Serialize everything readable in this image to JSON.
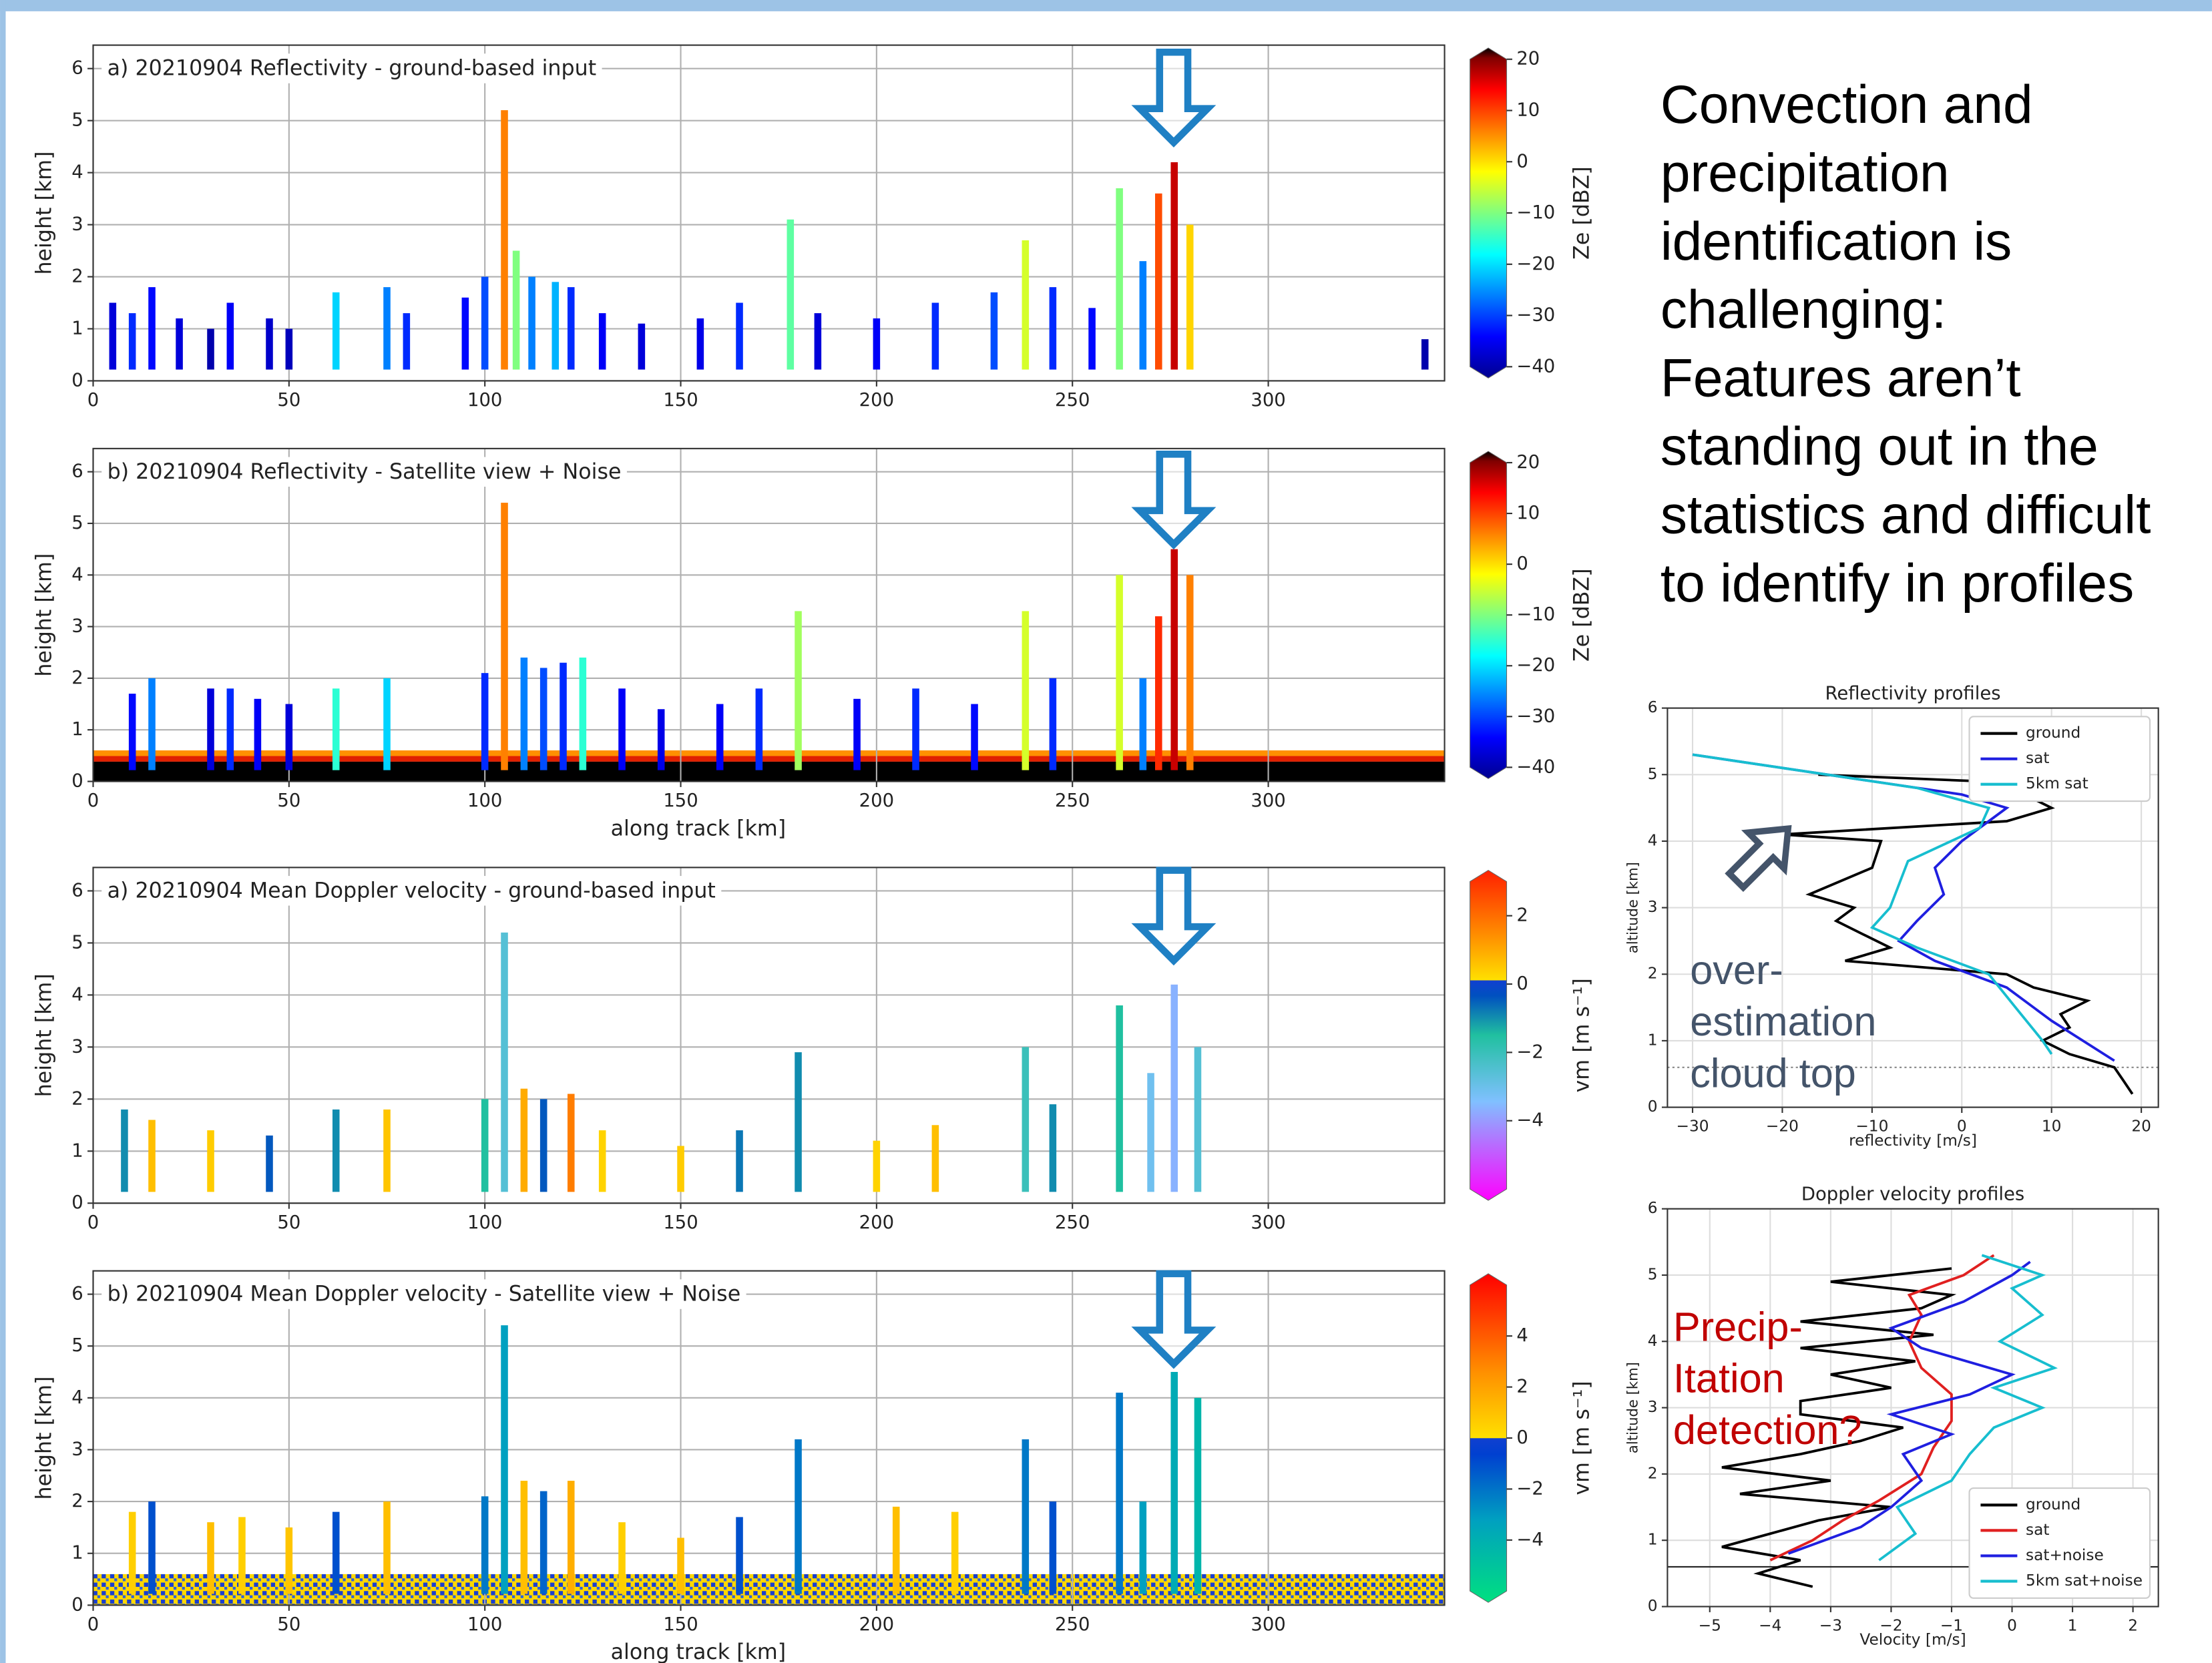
{
  "slide_text": [
    "Convection and",
    "precipitation",
    "identification is",
    "challenging:",
    "Features aren’t",
    "standing out in the",
    "statistics and difficult",
    "to identify in profiles"
  ],
  "chart_data": [
    {
      "type": "heatmap",
      "title": "a) 20210904 Reflectivity - ground-based input",
      "ylabel": "height [km]",
      "colormap": "jet",
      "xlim": [
        0,
        345
      ],
      "ylim": [
        0,
        6.45
      ],
      "xticks": [
        0,
        50,
        100,
        150,
        200,
        250,
        300
      ],
      "yticks": [
        0,
        1,
        2,
        3,
        4,
        5,
        6
      ],
      "grid": true,
      "x": [
        5,
        10,
        15,
        22,
        30,
        35,
        45,
        50,
        62,
        75,
        80,
        95,
        100,
        105,
        108,
        112,
        118,
        122,
        130,
        140,
        155,
        165,
        178,
        185,
        200,
        215,
        230,
        238,
        245,
        255,
        262,
        268,
        272,
        276,
        280,
        340
      ],
      "tops": [
        1.5,
        1.3,
        1.8,
        1.2,
        1.0,
        1.5,
        1.2,
        1.0,
        1.7,
        1.8,
        1.3,
        1.6,
        2.0,
        5.2,
        2.5,
        2.0,
        1.9,
        1.8,
        1.3,
        1.1,
        1.2,
        1.5,
        3.1,
        1.3,
        1.2,
        1.5,
        1.7,
        2.7,
        1.8,
        1.4,
        3.7,
        2.3,
        3.6,
        4.2,
        3.0,
        0.8
      ],
      "values": [
        -35,
        -30,
        -32,
        -35,
        -38,
        -33,
        -36,
        -37,
        -20,
        -25,
        -30,
        -32,
        -28,
        5,
        -10,
        -25,
        -22,
        -30,
        -33,
        -35,
        -34,
        -30,
        -12,
        -35,
        -33,
        -30,
        -28,
        -5,
        -30,
        -32,
        -10,
        -25,
        8,
        15,
        0,
        -38
      ],
      "clim": [
        -40,
        20
      ],
      "colorbar_label": "Ze [dBZ]",
      "cticks": [
        {
          "value": -40,
          "label": "−40"
        },
        {
          "value": -30,
          "label": "−30"
        },
        {
          "value": -20,
          "label": "−20"
        },
        {
          "value": -10,
          "label": "−10"
        },
        0,
        10,
        20
      ]
    },
    {
      "type": "heatmap",
      "title": "b) 20210904 Reflectivity - Satellite view + Noise",
      "ylabel": "height [km]",
      "xlabel": "along track [km]",
      "colormap": "jet",
      "xlim": [
        0,
        345
      ],
      "ylim": [
        0,
        6.45
      ],
      "xticks": [
        0,
        50,
        100,
        150,
        200,
        250,
        300
      ],
      "yticks": [
        0,
        1,
        2,
        3,
        4,
        5,
        6
      ],
      "grid": true,
      "x": [
        10,
        15,
        30,
        35,
        42,
        50,
        62,
        75,
        100,
        105,
        110,
        115,
        120,
        125,
        135,
        145,
        160,
        170,
        180,
        195,
        210,
        225,
        238,
        245,
        262,
        268,
        272,
        276,
        280
      ],
      "tops": [
        1.7,
        2.0,
        1.8,
        1.8,
        1.6,
        1.5,
        1.8,
        2.0,
        2.1,
        5.4,
        2.4,
        2.2,
        2.3,
        2.4,
        1.8,
        1.4,
        1.5,
        1.8,
        3.3,
        1.6,
        1.8,
        1.5,
        3.3,
        2.0,
        4.0,
        2.0,
        3.2,
        4.5,
        4.0
      ],
      "values": [
        -32,
        -25,
        -35,
        -30,
        -33,
        -35,
        -15,
        -20,
        -30,
        5,
        -25,
        -28,
        -30,
        -15,
        -33,
        -34,
        -33,
        -30,
        -8,
        -33,
        -30,
        -32,
        -5,
        -30,
        -5,
        -25,
        10,
        15,
        5
      ],
      "clim": [
        -40,
        20
      ],
      "colorbar_label": "Ze [dBZ]",
      "cticks": [
        {
          "value": -40,
          "label": "−40"
        },
        {
          "value": -30,
          "label": "−30"
        },
        {
          "value": -20,
          "label": "−20"
        },
        {
          "value": -10,
          "label": "−10"
        },
        0,
        10,
        20
      ]
    },
    {
      "type": "heatmap",
      "title": "a) 20210904 Mean Doppler velocity - ground-based input",
      "ylabel": "height [km]",
      "colormap": "velocity",
      "xlim": [
        0,
        345
      ],
      "ylim": [
        0,
        6.45
      ],
      "xticks": [
        0,
        50,
        100,
        150,
        200,
        250,
        300
      ],
      "yticks": [
        0,
        1,
        2,
        3,
        4,
        5,
        6
      ],
      "grid": true,
      "x": [
        8,
        15,
        30,
        45,
        62,
        75,
        100,
        105,
        110,
        115,
        122,
        130,
        150,
        165,
        180,
        200,
        215,
        238,
        245,
        262,
        270,
        276,
        282
      ],
      "tops": [
        1.8,
        1.6,
        1.4,
        1.3,
        1.8,
        1.8,
        2.0,
        5.2,
        2.2,
        2.0,
        2.1,
        1.4,
        1.1,
        1.4,
        2.9,
        1.2,
        1.5,
        3.0,
        1.9,
        3.8,
        2.5,
        4.2,
        3.0
      ],
      "values": [
        -1,
        0.5,
        0.3,
        -0.5,
        -1,
        0.4,
        -1.5,
        -2.5,
        0.8,
        -0.5,
        1.5,
        0.2,
        0.3,
        -0.8,
        -1,
        0.2,
        0.5,
        -2,
        -1,
        -1.5,
        -3,
        -3.5,
        -2.5
      ],
      "clim": [
        -6,
        3
      ],
      "colorbar_label": "vm [m s⁻¹]",
      "cticks": [
        {
          "value": -4,
          "label": "−4"
        },
        {
          "value": -2,
          "label": "−2"
        },
        0,
        2
      ]
    },
    {
      "type": "heatmap",
      "title": "b) 20210904 Mean Doppler velocity - Satellite view + Noise",
      "ylabel": "height [km]",
      "xlabel": "along track [km]",
      "colormap": "velocity-wide",
      "xlim": [
        0,
        345
      ],
      "ylim": [
        0,
        6.45
      ],
      "xticks": [
        0,
        50,
        100,
        150,
        200,
        250,
        300
      ],
      "yticks": [
        0,
        1,
        2,
        3,
        4,
        5,
        6
      ],
      "grid": true,
      "x": [
        10,
        15,
        30,
        38,
        50,
        62,
        75,
        100,
        105,
        110,
        115,
        122,
        135,
        150,
        165,
        180,
        205,
        220,
        238,
        245,
        262,
        268,
        276,
        282
      ],
      "tops": [
        1.8,
        2.0,
        1.6,
        1.7,
        1.5,
        1.8,
        2.0,
        2.1,
        5.4,
        2.4,
        2.2,
        2.4,
        1.6,
        1.3,
        1.7,
        3.2,
        1.9,
        1.8,
        3.2,
        2.0,
        4.1,
        2.0,
        4.5,
        4.0
      ],
      "values": [
        0.5,
        -1,
        1,
        0.5,
        0.8,
        -1,
        1,
        -2,
        -3,
        1,
        -1.5,
        1.5,
        0.5,
        1,
        -1,
        -2,
        1,
        0.5,
        -2,
        -1,
        -2,
        -3,
        -3.5,
        -4
      ],
      "clim": [
        -6,
        6
      ],
      "colorbar_label": "vm [m s⁻¹]",
      "cticks": [
        {
          "value": -4,
          "label": "−4"
        },
        {
          "value": -2,
          "label": "−2"
        },
        0,
        2,
        4
      ]
    },
    {
      "type": "line",
      "title": "Reflectivity profiles",
      "xlabel": "reflectivity [m/s]",
      "ylabel": "altitude [km]",
      "legend": "upper right",
      "xlim": [
        -32.8,
        21.9
      ],
      "ylim": [
        0,
        6
      ],
      "xticks": [
        {
          "value": -30,
          "label": "−30"
        },
        {
          "value": -20,
          "label": "−20"
        },
        {
          "value": -10,
          "label": "−10"
        },
        0,
        10,
        20
      ],
      "yticks": [
        0,
        1,
        2,
        3,
        4,
        5,
        6
      ],
      "grid": true,
      "reference_line": {
        "y": 0.6,
        "style": "dotted"
      },
      "annotation": [
        "over-",
        "estimation",
        "cloud top"
      ],
      "annotation_color": "#44546a",
      "series": [
        {
          "name": "ground",
          "color": "#000000",
          "x": [
            19,
            18,
            17,
            12,
            9,
            12,
            11,
            14,
            8,
            5,
            -13,
            -8,
            -11,
            -14,
            -12,
            -17,
            -10,
            -9,
            -20,
            5,
            10,
            7,
            2,
            -16
          ],
          "y": [
            0.2,
            0.4,
            0.6,
            0.8,
            1.0,
            1.2,
            1.4,
            1.6,
            1.8,
            2.0,
            2.2,
            2.4,
            2.6,
            2.8,
            3.0,
            3.2,
            3.6,
            4.0,
            4.1,
            4.3,
            4.5,
            4.7,
            4.9,
            5.0
          ]
        },
        {
          "name": "sat",
          "color": "#1f1fe0",
          "x": [
            -30,
            0,
            5,
            0,
            -3,
            -2,
            -5,
            -7,
            -3,
            5,
            10,
            17
          ],
          "y": [
            5.3,
            4.7,
            4.5,
            4.0,
            3.6,
            3.2,
            2.8,
            2.5,
            2.2,
            1.8,
            1.3,
            0.7
          ]
        },
        {
          "name": "5km sat",
          "color": "#17becf",
          "x": [
            -30,
            -5,
            3,
            2,
            -6,
            -8,
            -10,
            -5,
            3,
            6,
            9,
            10
          ],
          "y": [
            5.3,
            4.8,
            4.5,
            4.2,
            3.7,
            3.0,
            2.7,
            2.4,
            2.0,
            1.5,
            1.0,
            0.8
          ]
        }
      ]
    },
    {
      "type": "line",
      "title": "Doppler velocity profiles",
      "xlabel": "Velocity [m/s]",
      "ylabel": "altitude [km]",
      "legend": "lower right",
      "xlim": [
        -5.7,
        2.42
      ],
      "ylim": [
        0,
        6
      ],
      "xticks": [
        {
          "value": -5,
          "label": "−5"
        },
        {
          "value": -4,
          "label": "−4"
        },
        {
          "value": -3,
          "label": "−3"
        },
        {
          "value": -2,
          "label": "−2"
        },
        {
          "value": -1,
          "label": "−1"
        },
        0,
        1,
        2
      ],
      "yticks": [
        0,
        1,
        2,
        3,
        4,
        5,
        6
      ],
      "grid": true,
      "reference_line": {
        "y": 0.6,
        "style": "solid"
      },
      "annotation": [
        "Precip-",
        "Itation",
        "detection?"
      ],
      "annotation_color": "#c00000",
      "series": [
        {
          "name": "ground",
          "color": "#000000",
          "x": [
            -3.3,
            -4.2,
            -3.5,
            -4.8,
            -4,
            -3.2,
            -2,
            -4.5,
            -3,
            -4.8,
            -3.5,
            -2.5,
            -1.8,
            -3.5,
            -3.5,
            -2,
            -3,
            -1.6,
            -3.5,
            -1.3,
            -3.5,
            -1.5,
            -1,
            -3,
            -1
          ],
          "y": [
            0.3,
            0.5,
            0.7,
            0.9,
            1.1,
            1.3,
            1.5,
            1.7,
            1.9,
            2.1,
            2.3,
            2.5,
            2.7,
            2.9,
            3.1,
            3.3,
            3.5,
            3.7,
            3.9,
            4.1,
            4.3,
            4.5,
            4.7,
            4.9,
            5.1
          ]
        },
        {
          "name": "sat",
          "color": "#e02020",
          "x": [
            -4,
            -3.3,
            -2.8,
            -2.2,
            -1.5,
            -1.3,
            -1,
            -1,
            -1.5,
            -1.7,
            -1.5,
            -1.7,
            -0.8,
            -0.3
          ],
          "y": [
            0.7,
            1.0,
            1.3,
            1.6,
            2.0,
            2.4,
            2.8,
            3.2,
            3.6,
            4.0,
            4.4,
            4.7,
            5.0,
            5.3
          ]
        },
        {
          "name": "sat+noise",
          "color": "#1f1fe0",
          "x": [
            -3.7,
            -2.5,
            -2,
            -1.5,
            -1.8,
            -1,
            -2,
            -0.7,
            0,
            -1.5,
            -2,
            -0.8,
            0,
            0.3
          ],
          "y": [
            0.8,
            1.2,
            1.5,
            1.9,
            2.3,
            2.6,
            2.9,
            3.2,
            3.5,
            3.9,
            4.2,
            4.6,
            5.0,
            5.2
          ]
        },
        {
          "name": "5km sat+noise",
          "color": "#17becf",
          "x": [
            -2.2,
            -1.6,
            -1.9,
            -1.0,
            -0.7,
            -0.3,
            0.5,
            -0.3,
            0.7,
            -0.2,
            0.5,
            0,
            0.5,
            -0.5
          ],
          "y": [
            0.7,
            1.1,
            1.5,
            1.9,
            2.3,
            2.7,
            3.0,
            3.3,
            3.6,
            4.0,
            4.4,
            4.8,
            5.0,
            5.3
          ]
        }
      ]
    }
  ]
}
